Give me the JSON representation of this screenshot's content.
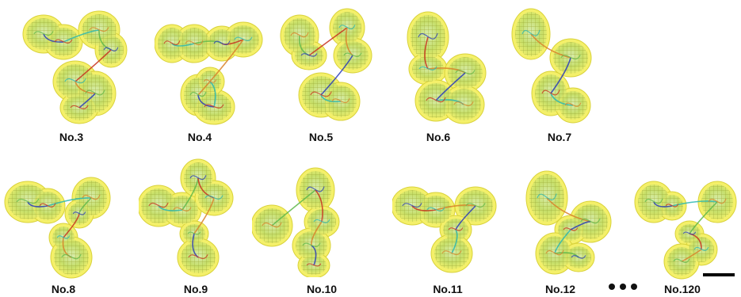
{
  "models": [
    {
      "id": "no3",
      "label": "No.3"
    },
    {
      "id": "no4",
      "label": "No.4"
    },
    {
      "id": "no5",
      "label": "No.5"
    },
    {
      "id": "no6",
      "label": "No.6"
    },
    {
      "id": "no7",
      "label": "No.7"
    },
    {
      "id": "no8",
      "label": "No.8"
    },
    {
      "id": "no9",
      "label": "No.9"
    },
    {
      "id": "no10",
      "label": "No.10"
    },
    {
      "id": "no11",
      "label": "No.11"
    },
    {
      "id": "no12",
      "label": "No.12"
    },
    {
      "id": "no120",
      "label": "No.120"
    }
  ],
  "colors": {
    "envelope": "#f4f06a",
    "envelope_edge": "#d9d23a",
    "mesh": "#b9c74a",
    "ribbon_blue": "#2a3cb8",
    "ribbon_cyan": "#2bb7b0",
    "ribbon_green": "#5fb84a",
    "ribbon_red": "#c8321e",
    "ribbon_orange": "#d9832a"
  },
  "ellipsis_icon": "three-dots-icon",
  "scale_bar_icon": "scale-bar"
}
